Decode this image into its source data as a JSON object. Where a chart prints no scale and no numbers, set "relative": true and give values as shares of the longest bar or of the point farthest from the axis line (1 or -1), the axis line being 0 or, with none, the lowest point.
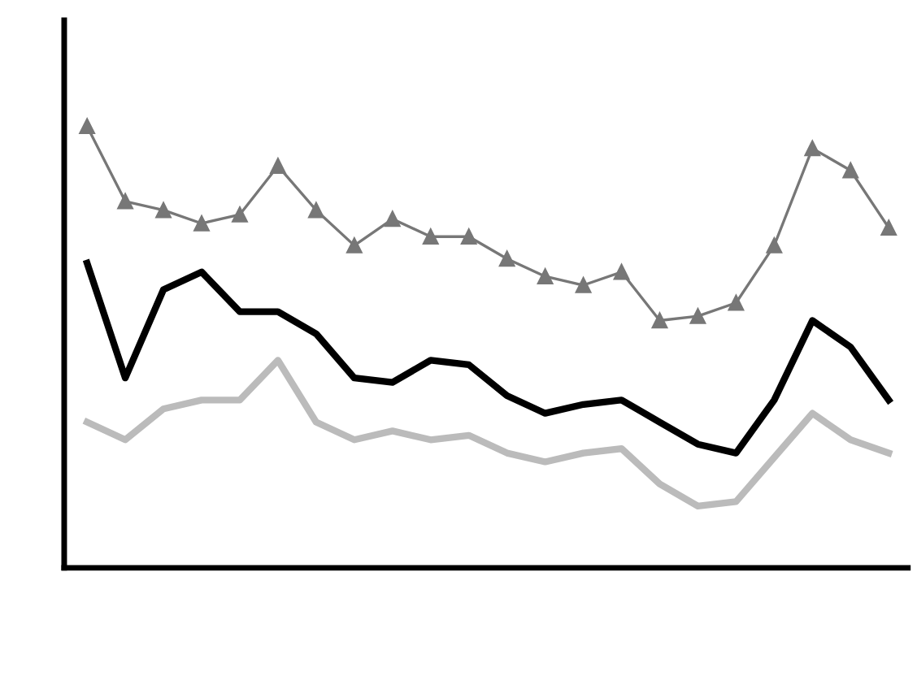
{
  "chart_data": {
    "type": "line",
    "relative": true,
    "legend": false,
    "grid": false,
    "categories": [
      null,
      null,
      null,
      null,
      null,
      null,
      null,
      null,
      null,
      null,
      null,
      null,
      null,
      null,
      null,
      null,
      null,
      null,
      null,
      null,
      null,
      null
    ],
    "series": [
      {
        "color": "#000000",
        "marker": "none",
        "values": [
          0.69,
          0.43,
          0.63,
          0.67,
          0.58,
          0.58,
          0.53,
          0.43,
          0.42,
          0.47,
          0.46,
          0.39,
          0.35,
          0.37,
          0.38,
          0.33,
          0.28,
          0.26,
          0.38,
          0.56,
          0.5,
          0.38
        ]
      },
      {
        "color": "#bbbbbb",
        "marker": "none",
        "values": [
          0.33,
          0.29,
          0.36,
          0.38,
          0.38,
          0.47,
          0.33,
          0.29,
          0.31,
          0.29,
          0.3,
          0.26,
          0.24,
          0.26,
          0.27,
          0.19,
          0.14,
          0.15,
          0.25,
          0.35,
          0.29,
          0.26
        ]
      },
      {
        "color": "#777777",
        "marker": "triangle",
        "values": [
          1.0,
          0.83,
          0.81,
          0.78,
          0.8,
          0.91,
          0.81,
          0.73,
          0.79,
          0.75,
          0.75,
          0.7,
          0.66,
          0.64,
          0.67,
          0.56,
          0.57,
          0.6,
          0.73,
          0.95,
          0.9,
          0.77
        ]
      }
    ]
  }
}
